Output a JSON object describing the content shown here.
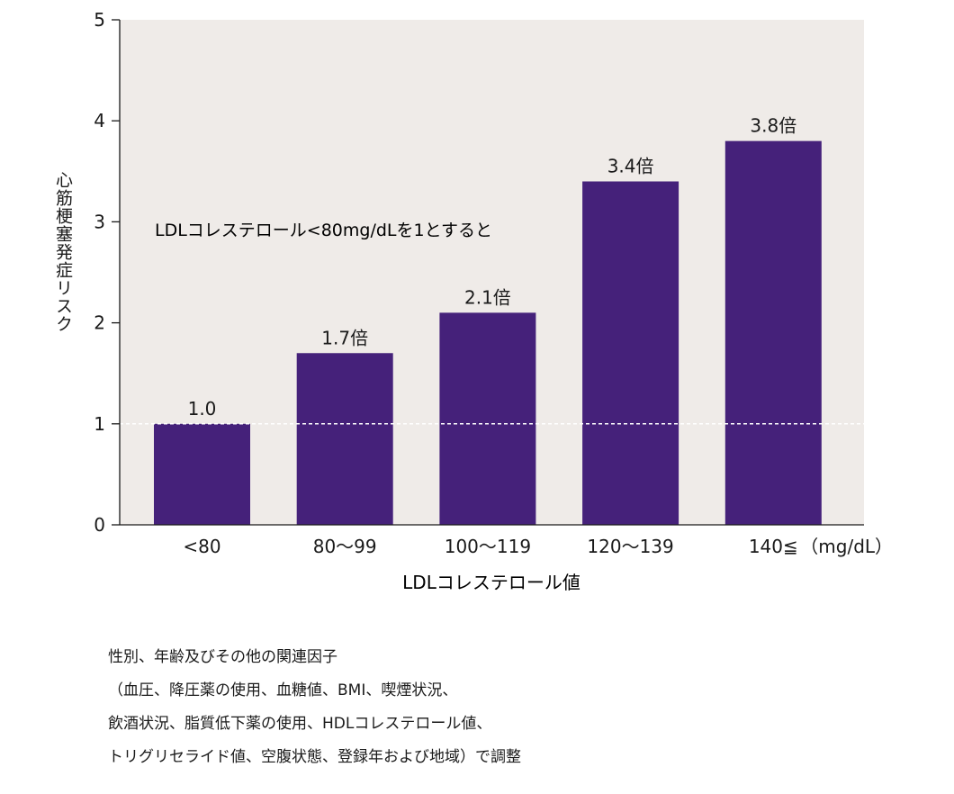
{
  "chart_data": {
    "type": "bar",
    "categories": [
      "<80",
      "80〜99",
      "100〜119",
      "120〜139",
      "140≦"
    ],
    "values": [
      1.0,
      1.7,
      2.1,
      3.4,
      3.8
    ],
    "value_labels": [
      "1.0",
      "1.7倍",
      "2.1倍",
      "3.4倍",
      "3.8倍"
    ],
    "xlabel": "LDLコレステロール値",
    "ylabel": "心筋梗塞発症リスク",
    "x_unit": "（mg/dL）",
    "ylim": [
      0,
      5
    ],
    "yticks": [
      0,
      1,
      2,
      3,
      4,
      5
    ],
    "reference_line": 1,
    "annotation": "LDLコレステロール<80mg/dLを1とすると",
    "grid": false,
    "colors": {
      "bar": "#45217a",
      "plot_bg": "#efebe8",
      "reference_line": "#ffffff"
    }
  },
  "notes": [
    "性別、年齢及びその他の関連因子",
    "（血圧、降圧薬の使用、血糖値、BMI、喫煙状況、",
    "飲酒状況、脂質低下薬の使用、HDLコレステロール値、",
    "トリグリセライド値、空腹状態、登録年および地域）で調整"
  ]
}
